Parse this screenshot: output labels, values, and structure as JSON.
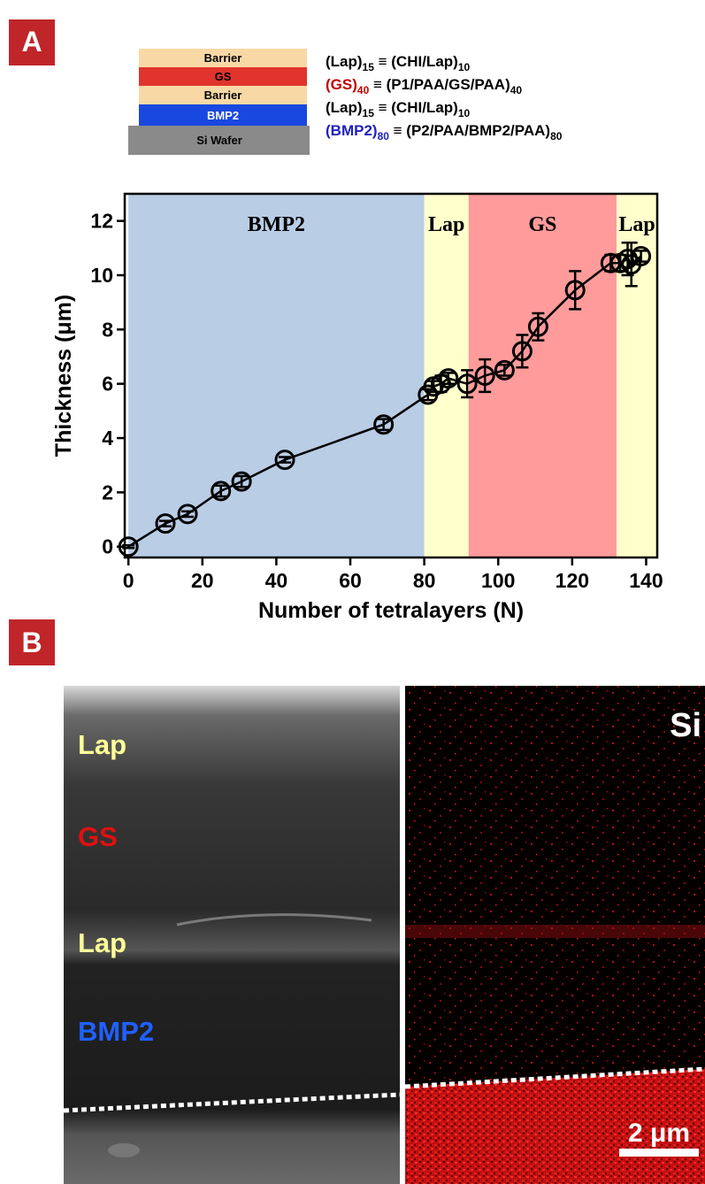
{
  "panel_labels": [
    "A",
    "B"
  ],
  "layer_stack": [
    "Barrier",
    "GS",
    "Barrier",
    "BMP2",
    "Si Wafer"
  ],
  "formulas": [
    {
      "parts": [
        "(Lap)",
        "15",
        " ≡ (CHI/Lap)",
        "10"
      ]
    },
    {
      "parts": [
        "(GS)",
        "40",
        "  ≡ (P1/PAA/GS/PAA)",
        "40"
      ],
      "color": "#c00000"
    },
    {
      "parts": [
        "(Lap)",
        "15",
        " ≡ (CHI/Lap)",
        "10"
      ]
    },
    {
      "parts": [
        "(BMP2)",
        "80",
        " ≡ (P2/PAA/BMP2/PAA)",
        "80"
      ],
      "color": "#2020c0"
    }
  ],
  "chart_data": {
    "type": "line",
    "xlabel": "Number of tetralayers (N)",
    "ylabel": "Thickness (μm)",
    "x": [
      0,
      10,
      16,
      25,
      30.6,
      42.3,
      69,
      81,
      82.5,
      84.5,
      86.5,
      91.6,
      96.4,
      101.7,
      106.5,
      110.8,
      120.8,
      130.4,
      133,
      135,
      136,
      138.6
    ],
    "series": [
      {
        "color": "#000000",
        "values": [
          0,
          0.85,
          1.2,
          2.05,
          2.4,
          3.2,
          4.5,
          5.6,
          5.9,
          6.0,
          6.2,
          6.0,
          6.3,
          6.5,
          7.2,
          8.1,
          9.45,
          10.45,
          10.45,
          10.6,
          10.4,
          10.7
        ],
        "errors": [
          0.05,
          0.1,
          0.1,
          0.2,
          0.2,
          0.1,
          0.2,
          0.2,
          0.2,
          0.3,
          0.2,
          0.5,
          0.6,
          0.2,
          0.6,
          0.5,
          0.7,
          0.3,
          0.3,
          0.6,
          0.8,
          0.2
        ]
      }
    ],
    "regions": [
      {
        "label": "BMP2",
        "start": 0,
        "end": 80,
        "color": "#b9cde5"
      },
      {
        "label": "Lap",
        "start": 80,
        "end": 92,
        "color": "#ffffcc"
      },
      {
        "label": "GS",
        "start": 92,
        "end": 132,
        "color": "#ff9b9b"
      },
      {
        "label": "Lap",
        "start": 132,
        "end": 143,
        "color": "#ffffcc"
      }
    ],
    "xlim": [
      -1,
      143
    ],
    "ylim": [
      -0.4,
      13
    ],
    "xticks": [
      0,
      20,
      40,
      60,
      80,
      100,
      120,
      140
    ],
    "yticks": [
      0,
      2,
      4,
      6,
      8,
      10,
      12
    ]
  },
  "micrograph": {
    "labels": [
      "Lap",
      "GS",
      "Lap",
      "BMP2"
    ],
    "element": "Si",
    "scale_bar": "2 μm"
  }
}
